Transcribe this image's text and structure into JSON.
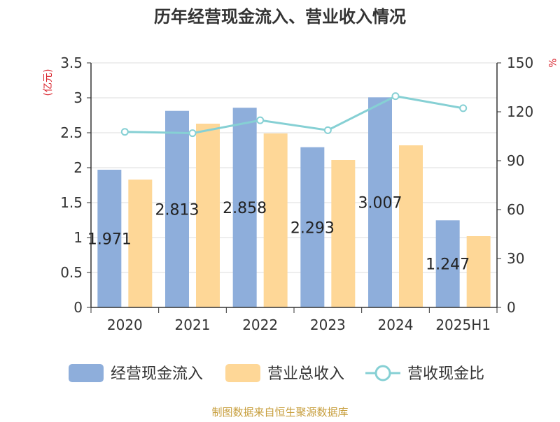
{
  "chart_data": {
    "type": "bar",
    "title": "历年经营现金流入、营业收入情况",
    "categories": [
      "2020",
      "2021",
      "2022",
      "2023",
      "2024",
      "2025H1"
    ],
    "series": [
      {
        "name": "经营现金流入",
        "type": "bar",
        "axis": "left",
        "color": "#8eaedb",
        "values": [
          1.971,
          2.813,
          2.858,
          2.293,
          3.007,
          1.247
        ],
        "labels": [
          "1.971",
          "2.813",
          "2.858",
          "2.293",
          "3.007",
          "1.247"
        ]
      },
      {
        "name": "营业总收入",
        "type": "bar",
        "axis": "left",
        "color": "#fed797",
        "values": [
          1.83,
          2.63,
          2.49,
          2.11,
          2.32,
          1.02
        ]
      },
      {
        "name": "营收现金比",
        "type": "line",
        "axis": "right",
        "color": "#86d0d4",
        "values": [
          107.7,
          106.9,
          114.8,
          108.7,
          129.6,
          122.2
        ]
      }
    ],
    "y_left": {
      "label": "(亿元)",
      "ylim": [
        0,
        3.5
      ],
      "ticks": [
        "0",
        "0.5",
        "1",
        "1.5",
        "2",
        "2.5",
        "3",
        "3.5"
      ]
    },
    "y_right": {
      "label": "%",
      "ylim": [
        0,
        150
      ],
      "ticks": [
        "0",
        "30",
        "60",
        "90",
        "120",
        "150"
      ]
    },
    "grid": true,
    "legend_position": "bottom"
  },
  "footer": {
    "source": "制图数据来自恒生聚源数据库"
  }
}
